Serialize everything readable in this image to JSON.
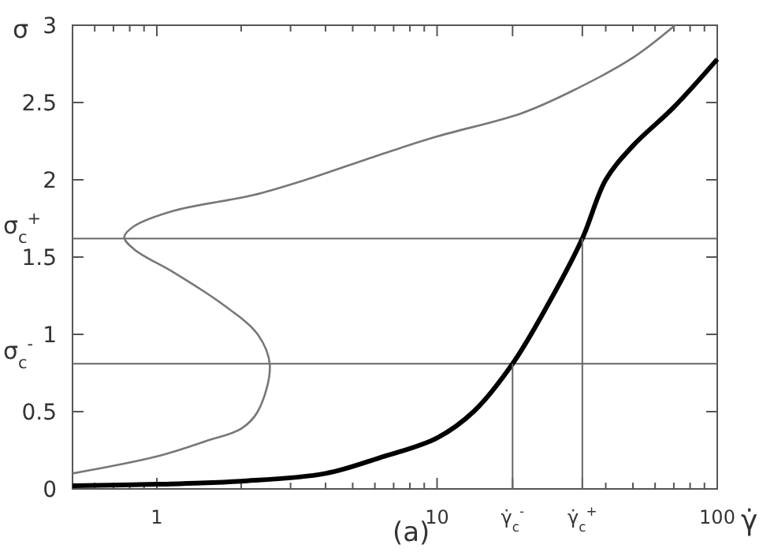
{
  "chart_data": {
    "type": "line",
    "xlabel": "γ̇",
    "ylabel": "σ",
    "log": "x",
    "xlim": [
      0.5,
      100
    ],
    "ylim": [
      0,
      3
    ],
    "xticks": [
      {
        "value": 0.6,
        "label": null
      },
      {
        "value": 0.7,
        "label": null
      },
      {
        "value": 0.8,
        "label": null
      },
      {
        "value": 0.9,
        "label": null
      },
      1,
      {
        "value": 2,
        "label": null
      },
      {
        "value": 3,
        "label": null
      },
      {
        "value": 4,
        "label": null
      },
      {
        "value": 5,
        "label": null
      },
      {
        "value": 6,
        "label": null
      },
      {
        "value": 7,
        "label": null
      },
      {
        "value": 8,
        "label": null
      },
      {
        "value": 9,
        "label": null
      },
      10,
      {
        "value": 18.6,
        "label": "γ̇$_{c}$$^{-}$"
      },
      {
        "value": 33,
        "label": "γ̇$_{c}$$^{+}$"
      },
      {
        "value": 40,
        "label": null
      },
      {
        "value": 50,
        "label": null
      },
      {
        "value": 60,
        "label": null
      },
      {
        "value": 70,
        "label": null
      },
      {
        "value": 80,
        "label": null
      },
      {
        "value": 90,
        "label": null
      },
      100
    ],
    "yticks": [
      0,
      0.5,
      1,
      1.5,
      2,
      2.5,
      3
    ],
    "marker": "none",
    "line_style": "solid",
    "series": [
      {
        "color": "#777777",
        "x": [
          0.5,
          1,
          1.5,
          2,
          2.29,
          2.53,
          2.29,
          1.7,
          1.15,
          0.83,
          0.765,
          0.83,
          1.15,
          2.2,
          3.4,
          6.2,
          10,
          20,
          30,
          50,
          70.7
        ],
        "values": [
          0.1,
          0.21,
          0.31,
          0.39,
          0.5,
          0.8,
          1.0,
          1.2,
          1.4,
          1.55,
          1.63,
          1.7,
          1.8,
          1.9,
          2.0,
          2.16,
          2.28,
          2.43,
          2.57,
          2.79,
          3.0
        ]
      },
      {
        "color": "#000000",
        "x": [
          0.5,
          1,
          2,
          4,
          6.2,
          10,
          13.5,
          18.6,
          25,
          33,
          40,
          50,
          70,
          100
        ],
        "values": [
          0.02,
          0.03,
          0.05,
          0.1,
          0.2,
          0.33,
          0.5,
          0.81,
          1.2,
          1.62,
          2.0,
          2.22,
          2.47,
          2.78
        ]
      },
      {
        "color": "#666666",
        "x": [
          18.6,
          18.6
        ],
        "values": [
          0,
          0.81
        ]
      },
      {
        "color": "#666666",
        "x": [
          33,
          33
        ],
        "values": [
          0,
          1.62
        ]
      }
    ],
    "ref_lines": [
      {
        "axis": "y",
        "value": 1.62,
        "label": "σ$_{c}$$^{+}$",
        "color": "#666666"
      },
      {
        "axis": "y",
        "value": 0.81,
        "label": "σ$_{c}$$^{-}$",
        "color": "#666666"
      }
    ],
    "annotations": [
      "(a)"
    ]
  }
}
